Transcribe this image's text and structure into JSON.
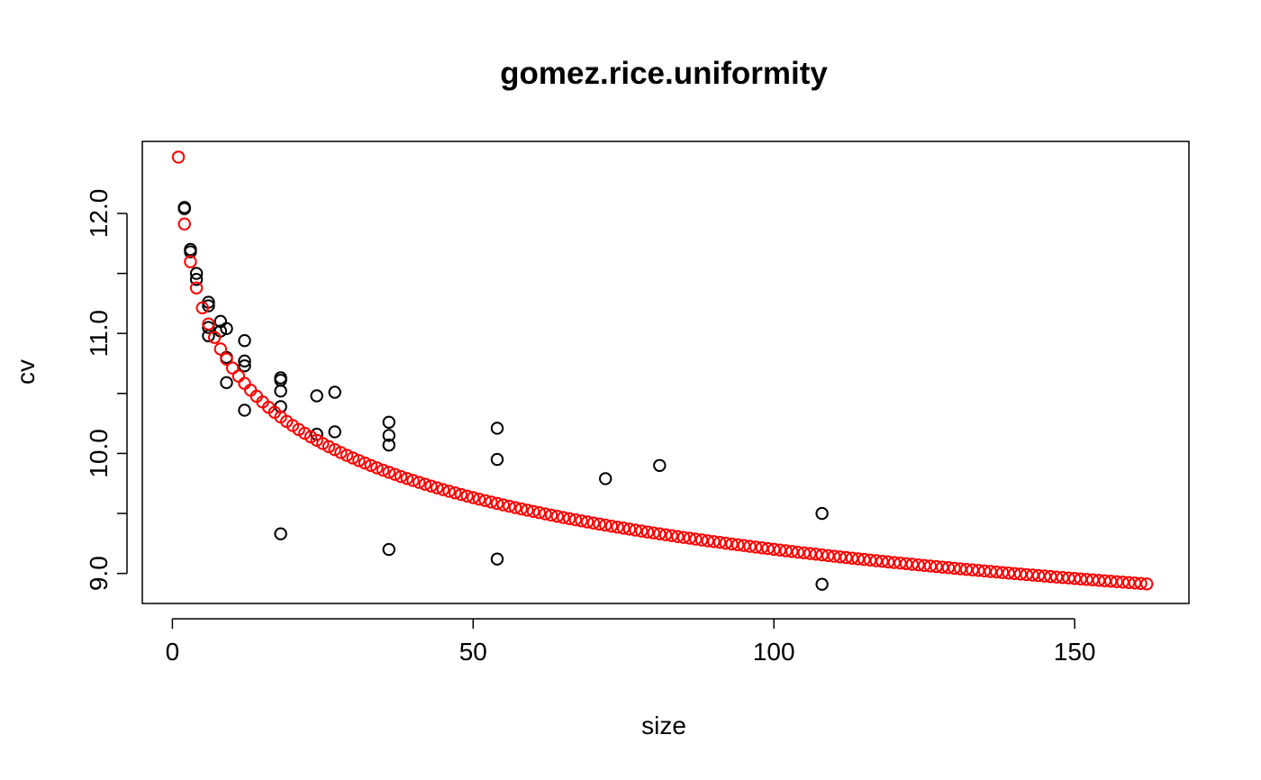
{
  "chart_data": {
    "type": "scatter",
    "title": "gomez.rice.uniformity",
    "xlabel": "size",
    "ylabel": "cv",
    "xlim": [
      -5,
      169
    ],
    "ylim": [
      8.75,
      12.6
    ],
    "x_ticks": [
      0,
      50,
      100,
      150
    ],
    "x_tick_labels": [
      "0",
      "50",
      "100",
      "150"
    ],
    "y_ticks": [
      9.0,
      9.5,
      10.0,
      10.5,
      11.0,
      11.5,
      12.0
    ],
    "y_tick_labels": [
      "9.0",
      "",
      "10.0",
      "",
      "11.0",
      "",
      "12.0"
    ],
    "grid": false,
    "series": [
      {
        "color": "#000000",
        "marker": "open-circle",
        "points": [
          [
            2,
            12.05
          ],
          [
            2,
            12.04
          ],
          [
            3,
            11.7
          ],
          [
            3,
            11.68
          ],
          [
            4,
            11.5
          ],
          [
            4,
            11.45
          ],
          [
            6,
            11.26
          ],
          [
            6,
            11.23
          ],
          [
            6,
            11.05
          ],
          [
            6,
            10.98
          ],
          [
            8,
            11.1
          ],
          [
            8,
            11.02
          ],
          [
            9,
            11.04
          ],
          [
            9,
            10.8
          ],
          [
            9,
            10.59
          ],
          [
            12,
            10.94
          ],
          [
            12,
            10.77
          ],
          [
            12,
            10.73
          ],
          [
            12,
            10.36
          ],
          [
            18,
            10.63
          ],
          [
            18,
            10.61
          ],
          [
            18,
            10.52
          ],
          [
            18,
            10.39
          ],
          [
            18,
            9.33
          ],
          [
            24,
            10.48
          ],
          [
            24,
            10.16
          ],
          [
            27,
            10.51
          ],
          [
            27,
            10.18
          ],
          [
            36,
            10.26
          ],
          [
            36,
            10.15
          ],
          [
            36,
            10.07
          ],
          [
            36,
            9.2
          ],
          [
            54,
            10.21
          ],
          [
            54,
            9.95
          ],
          [
            54,
            9.12
          ],
          [
            72,
            9.79
          ],
          [
            81,
            9.9
          ],
          [
            108,
            9.5
          ],
          [
            108,
            8.91
          ]
        ]
      },
      {
        "color": "#ff0000",
        "marker": "open-circle",
        "curve": {
          "a": 12.4694,
          "b": -0.066,
          "x_from": 1,
          "x_to": 162,
          "step": 1
        }
      }
    ]
  }
}
